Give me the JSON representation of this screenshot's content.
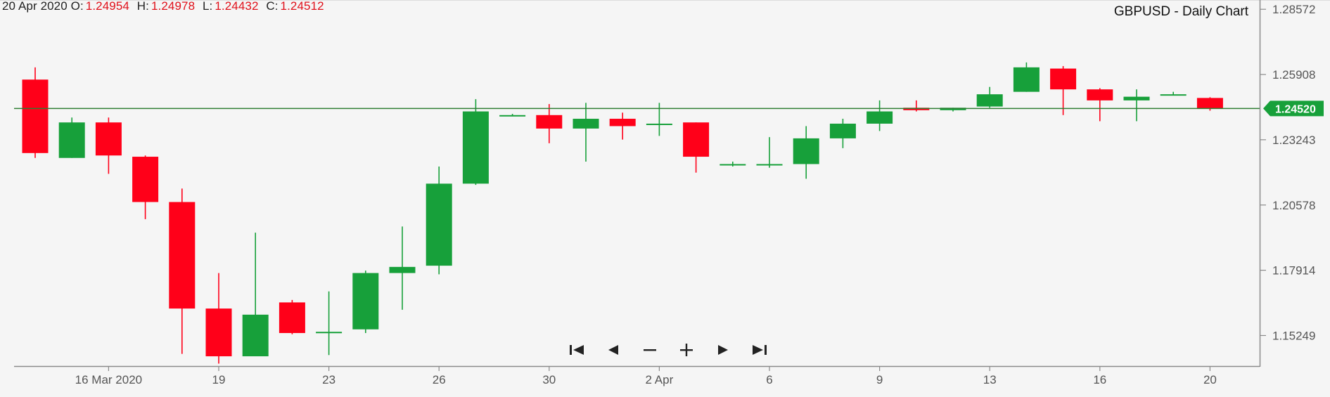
{
  "header": {
    "date": "20 Apr 2020",
    "open_label": "O:",
    "open": "1.24954",
    "high_label": "H:",
    "high": "1.24978",
    "low_label": "L:",
    "low": "1.24432",
    "close_label": "C:",
    "close": "1.24512"
  },
  "title": "GBPUSD - Daily Chart",
  "current_price_tag": "1.24520",
  "colors": {
    "up": "#17a03a",
    "down": "#ff0019",
    "price_line": "#2e7d32",
    "grid": "#c8c8c8"
  },
  "nav": [
    {
      "name": "first-icon",
      "glyph": "⏮"
    },
    {
      "name": "previous-icon",
      "glyph": "◀"
    },
    {
      "name": "zoom-out-icon",
      "glyph": "−"
    },
    {
      "name": "zoom-in-icon",
      "glyph": "+"
    },
    {
      "name": "next-icon",
      "glyph": "▶"
    },
    {
      "name": "last-icon",
      "glyph": "⏭"
    }
  ],
  "chart_data": {
    "type": "candlestick",
    "title": "GBPUSD - Daily Chart",
    "y_ticks": [
      "1.28572",
      "1.25908",
      "1.23243",
      "1.20578",
      "1.17914",
      "1.15249"
    ],
    "ylim": [
      1.14,
      1.2895
    ],
    "current_price": 1.2452,
    "x_tick_labels": [
      {
        "label": "16 Mar 2020",
        "index": 2
      },
      {
        "label": "19",
        "index": 5
      },
      {
        "label": "23",
        "index": 8
      },
      {
        "label": "26",
        "index": 11
      },
      {
        "label": "30",
        "index": 14
      },
      {
        "label": "2 Apr",
        "index": 17
      },
      {
        "label": "6",
        "index": 20
      },
      {
        "label": "9",
        "index": 23
      },
      {
        "label": "13",
        "index": 26
      },
      {
        "label": "16",
        "index": 29
      },
      {
        "label": "20",
        "index": 32
      }
    ],
    "candles": [
      {
        "o": 1.257,
        "h": 1.262,
        "l": 1.225,
        "c": 1.227
      },
      {
        "o": 1.225,
        "h": 1.2415,
        "l": 1.225,
        "c": 1.2395
      },
      {
        "o": 1.2395,
        "h": 1.2415,
        "l": 1.2185,
        "c": 1.226
      },
      {
        "o": 1.2255,
        "h": 1.226,
        "l": 1.2,
        "c": 1.207
      },
      {
        "o": 1.207,
        "h": 1.2125,
        "l": 1.145,
        "c": 1.1635
      },
      {
        "o": 1.1635,
        "h": 1.178,
        "l": 1.141,
        "c": 1.144
      },
      {
        "o": 1.144,
        "h": 1.1945,
        "l": 1.144,
        "c": 1.161
      },
      {
        "o": 1.166,
        "h": 1.167,
        "l": 1.153,
        "c": 1.1535
      },
      {
        "o": 1.154,
        "h": 1.1705,
        "l": 1.1445,
        "c": 1.154
      },
      {
        "o": 1.155,
        "h": 1.179,
        "l": 1.1535,
        "c": 1.178
      },
      {
        "o": 1.178,
        "h": 1.197,
        "l": 1.163,
        "c": 1.1805
      },
      {
        "o": 1.181,
        "h": 1.2215,
        "l": 1.1775,
        "c": 1.2145
      },
      {
        "o": 1.2145,
        "h": 1.249,
        "l": 1.214,
        "c": 1.244
      },
      {
        "o": 1.2425,
        "h": 1.243,
        "l": 1.242,
        "c": 1.2425
      },
      {
        "o": 1.2425,
        "h": 1.247,
        "l": 1.231,
        "c": 1.237
      },
      {
        "o": 1.237,
        "h": 1.2475,
        "l": 1.2235,
        "c": 1.241
      },
      {
        "o": 1.241,
        "h": 1.2435,
        "l": 1.2325,
        "c": 1.238
      },
      {
        "o": 1.239,
        "h": 1.2475,
        "l": 1.234,
        "c": 1.239
      },
      {
        "o": 1.2395,
        "h": 1.2395,
        "l": 1.219,
        "c": 1.2255
      },
      {
        "o": 1.2225,
        "h": 1.2235,
        "l": 1.2215,
        "c": 1.2225
      },
      {
        "o": 1.222,
        "h": 1.2335,
        "l": 1.221,
        "c": 1.2225
      },
      {
        "o": 1.2225,
        "h": 1.238,
        "l": 1.2165,
        "c": 1.233
      },
      {
        "o": 1.233,
        "h": 1.241,
        "l": 1.229,
        "c": 1.239
      },
      {
        "o": 1.239,
        "h": 1.2485,
        "l": 1.236,
        "c": 1.244
      },
      {
        "o": 1.2455,
        "h": 1.2485,
        "l": 1.244,
        "c": 1.2445
      },
      {
        "o": 1.2445,
        "h": 1.2455,
        "l": 1.244,
        "c": 1.2455
      },
      {
        "o": 1.246,
        "h": 1.254,
        "l": 1.2455,
        "c": 1.251
      },
      {
        "o": 1.252,
        "h": 1.264,
        "l": 1.252,
        "c": 1.262
      },
      {
        "o": 1.2615,
        "h": 1.2625,
        "l": 1.2425,
        "c": 1.253
      },
      {
        "o": 1.253,
        "h": 1.2535,
        "l": 1.24,
        "c": 1.2485
      },
      {
        "o": 1.2485,
        "h": 1.253,
        "l": 1.24,
        "c": 1.25
      },
      {
        "o": 1.251,
        "h": 1.252,
        "l": 1.2505,
        "c": 1.251
      },
      {
        "o": 1.2495,
        "h": 1.2498,
        "l": 1.2443,
        "c": 1.2451
      }
    ]
  }
}
